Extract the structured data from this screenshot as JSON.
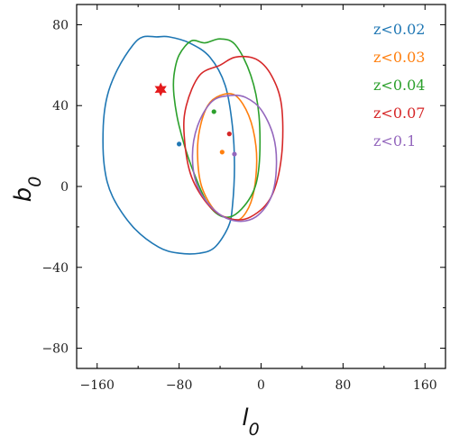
{
  "chart_data": {
    "type": "scatter",
    "title": "",
    "xlabel": "l",
    "xlabel_sub": "0",
    "ylabel": "b",
    "ylabel_sub": "0",
    "xlim": [
      -180,
      180
    ],
    "ylim": [
      -90,
      90
    ],
    "xticks": [
      -160,
      -80,
      0,
      80,
      160
    ],
    "yticks": [
      -80,
      -40,
      0,
      40,
      80
    ],
    "xtick_labels": [
      "−160",
      "−80",
      "0",
      "80",
      "160"
    ],
    "ytick_labels": [
      "−80",
      "−40",
      "0",
      "40",
      "80"
    ],
    "grid": false,
    "legend_position": "top-right",
    "marker": {
      "x": -98,
      "y": 48,
      "color": "#e41a1c",
      "shape": "star"
    },
    "series": [
      {
        "name": "z<0.02",
        "color": "#1f77b4",
        "center": {
          "x": -80,
          "y": 21
        },
        "contour": [
          [
            -102,
            74
          ],
          [
            -90,
            74
          ],
          [
            -70,
            71
          ],
          [
            -50,
            64
          ],
          [
            -35,
            50
          ],
          [
            -28,
            30
          ],
          [
            -26,
            10
          ],
          [
            -28,
            -10
          ],
          [
            -32,
            -20
          ],
          [
            -45,
            -30
          ],
          [
            -60,
            -33
          ],
          [
            -80,
            -33
          ],
          [
            -100,
            -30
          ],
          [
            -125,
            -20
          ],
          [
            -145,
            -5
          ],
          [
            -153,
            10
          ],
          [
            -154,
            30
          ],
          [
            -150,
            45
          ],
          [
            -140,
            58
          ],
          [
            -125,
            70
          ],
          [
            -115,
            74
          ],
          [
            -102,
            74
          ]
        ]
      },
      {
        "name": "z<0.03",
        "color": "#ff7f0e",
        "center": {
          "x": -38,
          "y": 17
        },
        "contour": [
          [
            -40,
            45
          ],
          [
            -25,
            45
          ],
          [
            -12,
            35
          ],
          [
            -5,
            20
          ],
          [
            -5,
            5
          ],
          [
            -10,
            -8
          ],
          [
            -20,
            -16
          ],
          [
            -30,
            -16
          ],
          [
            -45,
            -12
          ],
          [
            -58,
            0
          ],
          [
            -62,
            15
          ],
          [
            -60,
            28
          ],
          [
            -52,
            40
          ],
          [
            -40,
            45
          ]
        ]
      },
      {
        "name": "z<0.04",
        "color": "#2ca02c",
        "center": {
          "x": -46,
          "y": 37
        },
        "contour": [
          [
            -55,
            71
          ],
          [
            -40,
            73
          ],
          [
            -25,
            70
          ],
          [
            -10,
            55
          ],
          [
            -2,
            35
          ],
          [
            -2,
            10
          ],
          [
            -10,
            -5
          ],
          [
            -30,
            -15
          ],
          [
            -50,
            -10
          ],
          [
            -68,
            10
          ],
          [
            -80,
            30
          ],
          [
            -85,
            45
          ],
          [
            -85,
            55
          ],
          [
            -80,
            65
          ],
          [
            -68,
            72
          ],
          [
            -55,
            71
          ]
        ]
      },
      {
        "name": "z<0.07",
        "color": "#d62728",
        "center": {
          "x": -31,
          "y": 26
        },
        "contour": [
          [
            -40,
            60
          ],
          [
            -25,
            64
          ],
          [
            -5,
            63
          ],
          [
            10,
            55
          ],
          [
            20,
            40
          ],
          [
            20,
            15
          ],
          [
            10,
            -5
          ],
          [
            -10,
            -15
          ],
          [
            -30,
            -16
          ],
          [
            -50,
            -10
          ],
          [
            -68,
            5
          ],
          [
            -75,
            25
          ],
          [
            -73,
            40
          ],
          [
            -60,
            55
          ],
          [
            -40,
            60
          ]
        ]
      },
      {
        "name": "z<0.1",
        "color": "#9467bd",
        "center": {
          "x": -26,
          "y": 16
        },
        "contour": [
          [
            -30,
            45
          ],
          [
            -15,
            44
          ],
          [
            0,
            38
          ],
          [
            12,
            25
          ],
          [
            15,
            10
          ],
          [
            10,
            -5
          ],
          [
            -5,
            -15
          ],
          [
            -25,
            -17
          ],
          [
            -45,
            -12
          ],
          [
            -62,
            0
          ],
          [
            -67,
            15
          ],
          [
            -62,
            30
          ],
          [
            -48,
            42
          ],
          [
            -30,
            45
          ]
        ]
      }
    ]
  }
}
